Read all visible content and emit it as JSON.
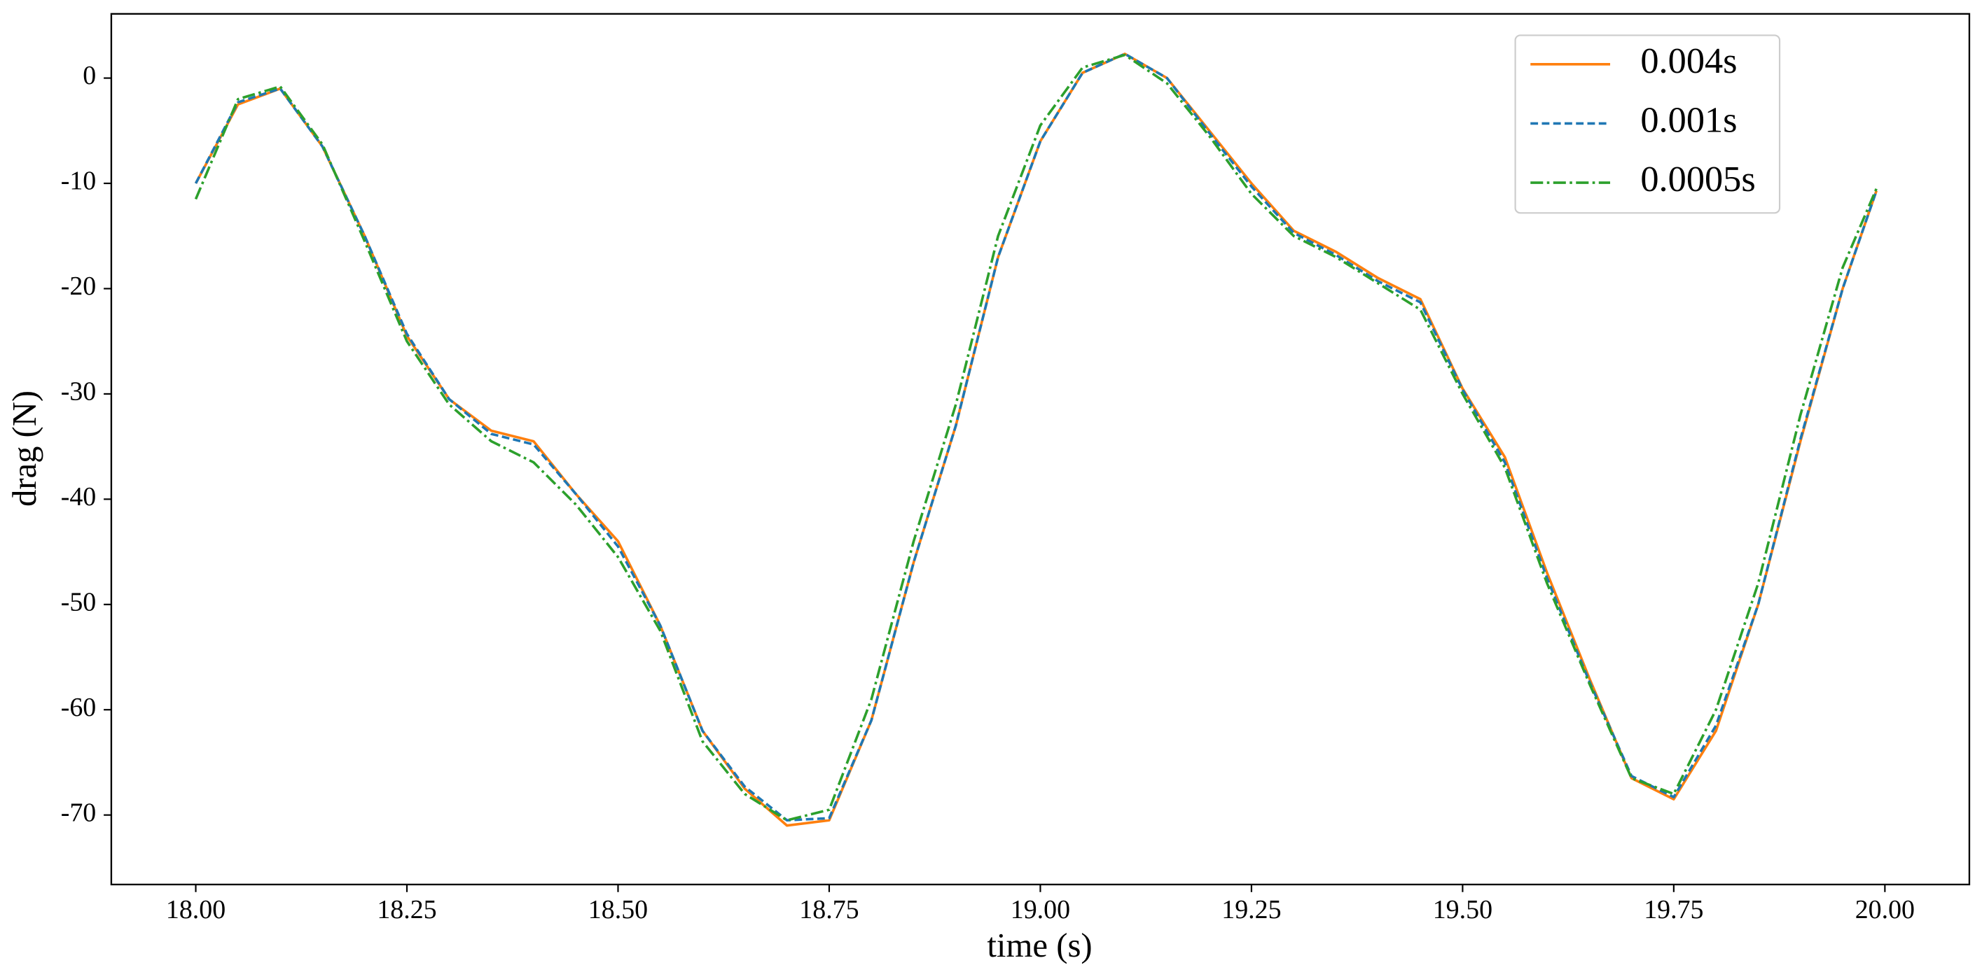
{
  "chart_data": {
    "type": "line",
    "xlabel": "time (s)",
    "ylabel": "drag (N)",
    "x": [
      18.0,
      18.05,
      18.1,
      18.15,
      18.2,
      18.25,
      18.3,
      18.35,
      18.4,
      18.45,
      18.5,
      18.55,
      18.6,
      18.65,
      18.7,
      18.75,
      18.8,
      18.85,
      18.9,
      18.95,
      19.0,
      19.05,
      19.1,
      19.15,
      19.2,
      19.25,
      19.3,
      19.35,
      19.4,
      19.45,
      19.5,
      19.55,
      19.6,
      19.65,
      19.7,
      19.75,
      19.8,
      19.85,
      19.9,
      19.95,
      19.99
    ],
    "series": [
      {
        "name": "0.004s",
        "color": "#ff7f0e",
        "dash": "solid",
        "values": [
          -10,
          -2.5,
          -1,
          -6.5,
          -15,
          -24.5,
          -30.5,
          -33.5,
          -34.5,
          -39.5,
          -44,
          -52,
          -62,
          -67.5,
          -71,
          -70.5,
          -61,
          -46,
          -33,
          -17,
          -6,
          0.5,
          2.3,
          0,
          -5,
          -10,
          -14.5,
          -16.5,
          -19,
          -21,
          -29.5,
          -36,
          -47,
          -57,
          -66.5,
          -68.5,
          -62,
          -50,
          -34.5,
          -20,
          -10.7
        ]
      },
      {
        "name": "0.001s",
        "color": "#1f77b4",
        "dash": "dashed",
        "values": [
          -10,
          -2.3,
          -1,
          -6.5,
          -15,
          -24.3,
          -30.5,
          -33.8,
          -34.8,
          -39.5,
          -44.5,
          -52,
          -62,
          -67.3,
          -70.5,
          -70.3,
          -61,
          -46,
          -33,
          -17,
          -6,
          0.5,
          2.3,
          0,
          -5.2,
          -10.3,
          -14.7,
          -16.8,
          -19.3,
          -21.3,
          -29.6,
          -36.5,
          -47.5,
          -57.3,
          -66.3,
          -68.3,
          -61.5,
          -50,
          -34.3,
          -20,
          -10.7
        ]
      },
      {
        "name": "0.0005s",
        "color": "#2ca02c",
        "dash": "dashdot",
        "values": [
          -11.5,
          -2,
          -0.8,
          -6.3,
          -15.5,
          -25,
          -31,
          -34.5,
          -36.5,
          -40.5,
          -45.5,
          -52.5,
          -63,
          -68,
          -70.5,
          -69.5,
          -59,
          -44,
          -31,
          -15,
          -4.5,
          1,
          2.2,
          -0.5,
          -5.5,
          -11,
          -15,
          -17,
          -19.5,
          -22,
          -30,
          -37,
          -48,
          -57.5,
          -66.5,
          -68,
          -60,
          -48,
          -32,
          -18,
          -10.5
        ]
      }
    ],
    "xlim": [
      17.9,
      20.1
    ],
    "ylim": [
      -76.6,
      6.1
    ],
    "xticks": [
      {
        "value": 18,
        "label": "18.00"
      },
      {
        "value": 18.25,
        "label": "18.25"
      },
      {
        "value": 18.5,
        "label": "18.50"
      },
      {
        "value": 18.75,
        "label": "18.75"
      },
      {
        "value": 19,
        "label": "19.00"
      },
      {
        "value": 19.25,
        "label": "19.25"
      },
      {
        "value": 19.5,
        "label": "19.50"
      },
      {
        "value": 19.75,
        "label": "19.75"
      },
      {
        "value": 20,
        "label": "20.00"
      }
    ],
    "yticks": [
      0,
      -10,
      -20,
      -30,
      -40,
      -50,
      -60,
      -70
    ],
    "grid": false,
    "legend": "upper right"
  }
}
